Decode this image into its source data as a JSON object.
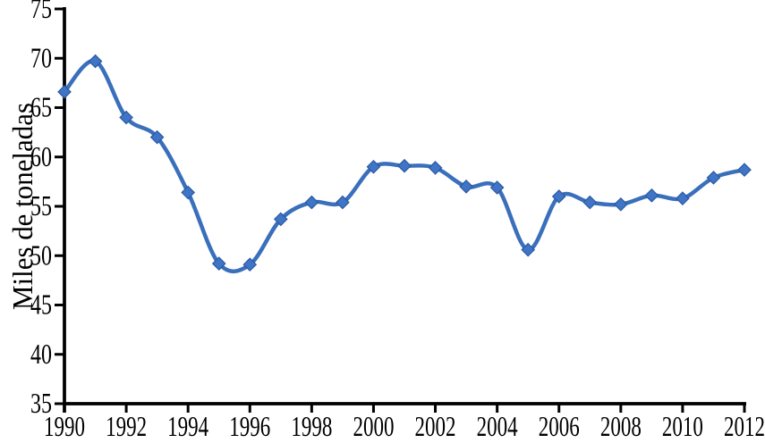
{
  "chart_data": {
    "type": "line",
    "title": "",
    "xlabel": "",
    "ylabel": "Miles de toneladas",
    "x": [
      1990,
      1991,
      1992,
      1993,
      1994,
      1995,
      1996,
      1997,
      1998,
      1999,
      2000,
      2001,
      2002,
      2003,
      2004,
      2005,
      2006,
      2007,
      2008,
      2009,
      2010,
      2011,
      2012
    ],
    "series": [
      {
        "name": "Miles de toneladas",
        "values": [
          66.6,
          69.7,
          64.0,
          62.0,
          56.4,
          49.2,
          49.1,
          53.7,
          55.4,
          55.4,
          59.0,
          59.1,
          58.9,
          57.0,
          56.9,
          50.6,
          56.0,
          55.4,
          55.2,
          56.1,
          55.8,
          57.9,
          58.7
        ]
      }
    ],
    "ylim": [
      35,
      75
    ],
    "ytick_step": 5,
    "ytick_labels": [
      "35",
      "40",
      "45",
      "50",
      "55",
      "60",
      "65",
      "70",
      "75"
    ],
    "xlim": [
      1990,
      2012
    ],
    "xtick_step": 2,
    "xtick_labels": [
      "1990",
      "1992",
      "1994",
      "1996",
      "1998",
      "2000",
      "2002",
      "2004",
      "2006",
      "2008",
      "2010",
      "2012"
    ],
    "grid": false,
    "legend": "none",
    "line_style": "smooth",
    "marker": "diamond",
    "colors": {
      "line": "#3a6fbc",
      "marker_fill": "#4074c6",
      "marker_stroke": "#2b5aa0",
      "axis": "#000000",
      "text": "#000000",
      "background": "#ffffff"
    }
  }
}
